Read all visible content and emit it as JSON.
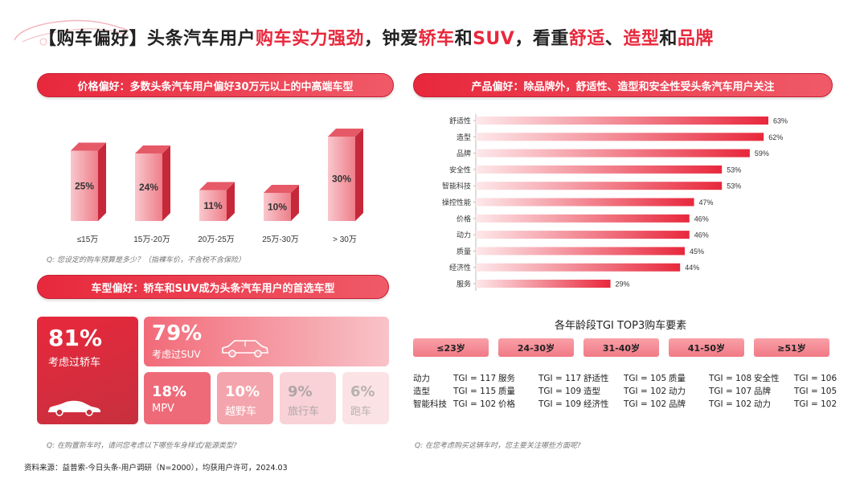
{
  "title": {
    "segments": [
      {
        "text": "【购车偏好】头条汽车用户",
        "hl": false
      },
      {
        "text": "购车实力强劲",
        "hl": true
      },
      {
        "text": "，钟爱",
        "hl": false
      },
      {
        "text": "轿车",
        "hl": true
      },
      {
        "text": "和",
        "hl": false
      },
      {
        "text": "SUV",
        "hl": true
      },
      {
        "text": "，看重",
        "hl": false
      },
      {
        "text": "舒适",
        "hl": true
      },
      {
        "text": "、",
        "hl": false
      },
      {
        "text": "造型",
        "hl": true
      },
      {
        "text": "和",
        "hl": false
      },
      {
        "text": "品牌",
        "hl": true
      }
    ]
  },
  "price_section": {
    "header": "价格偏好：多数头条汽车用户偏好30万元以上的中高端车型",
    "question": "Q: 您设定的购车预算是多少？（指裸车价，不含税不含保险）"
  },
  "body_section": {
    "header": "车型偏好：轿车和SUV成为头条汽车用户的首选车型",
    "question": "Q: 在购置新车时，请问您考虑以下哪些车身样式/能源类型?",
    "tiles": [
      {
        "pct": "81%",
        "label": "考虑过轿车"
      },
      {
        "pct": "79%",
        "label": "考虑过SUV"
      },
      {
        "pct": "18%",
        "label": "MPV"
      },
      {
        "pct": "10%",
        "label": "越野车"
      },
      {
        "pct": "9%",
        "label": "旅行车"
      },
      {
        "pct": "6%",
        "label": "跑车"
      }
    ]
  },
  "product_section": {
    "header": "产品偏好：除品牌外，舒适性、造型和安全性受头条汽车用户关注",
    "question": "Q: 在您考虑购买这辆车时，您主要关注哪些方面呢?"
  },
  "tgi": {
    "title": "各年龄段TGI TOP3购车要素",
    "groups": [
      {
        "age": "≤23岁",
        "items": [
          {
            "k": "动力",
            "v": "TGI = 117"
          },
          {
            "k": "造型",
            "v": "TGI = 115"
          },
          {
            "k": "智能科技",
            "v": "TGI = 102"
          }
        ]
      },
      {
        "age": "24-30岁",
        "items": [
          {
            "k": "服务",
            "v": "TGI = 117"
          },
          {
            "k": "质量",
            "v": "TGI = 109"
          },
          {
            "k": "价格",
            "v": "TGI = 109"
          }
        ]
      },
      {
        "age": "31-40岁",
        "items": [
          {
            "k": "舒适性",
            "v": "TGI = 105"
          },
          {
            "k": "造型",
            "v": "TGI = 102"
          },
          {
            "k": "经济性",
            "v": "TGI = 102"
          }
        ]
      },
      {
        "age": "41-50岁",
        "items": [
          {
            "k": "质量",
            "v": "TGI = 108"
          },
          {
            "k": "动力",
            "v": "TGI = 107"
          },
          {
            "k": "品牌",
            "v": "TGI = 102"
          }
        ]
      },
      {
        "age": "≥51岁",
        "items": [
          {
            "k": "安全性",
            "v": "TGI = 106"
          },
          {
            "k": "品牌",
            "v": "TGI = 105"
          },
          {
            "k": "动力",
            "v": "TGI = 102"
          }
        ]
      }
    ]
  },
  "source": "资料来源：益普索-今日头条-用户调研（N=2000），均获用户许可，2024.03",
  "colors": {
    "accent": "#e8283c",
    "tile_dark": "#d9303f",
    "tile_light": "#f7c9cd"
  },
  "chart_data": [
    {
      "type": "bar",
      "title": "",
      "categories": [
        "≤15万",
        "15万-20万",
        "20万-25万",
        "25万-30万",
        "> 30万"
      ],
      "values": [
        25,
        24,
        11,
        10,
        30
      ],
      "value_labels": [
        "25%",
        "24%",
        "11%",
        "10%",
        "30%"
      ],
      "ylim": [
        0,
        30
      ],
      "xlabel": "",
      "ylabel": "",
      "grid": false
    },
    {
      "type": "bar",
      "orientation": "horizontal",
      "title": "",
      "categories": [
        "舒适性",
        "造型",
        "品牌",
        "安全性",
        "智能科技",
        "操控性能",
        "价格",
        "动力",
        "质量",
        "经济性",
        "服务"
      ],
      "values": [
        63,
        62,
        59,
        53,
        53,
        47,
        46,
        46,
        45,
        44,
        29
      ],
      "value_labels": [
        "63%",
        "62%",
        "59%",
        "53%",
        "53%",
        "47%",
        "46%",
        "46%",
        "45%",
        "44%",
        "29%"
      ],
      "xlim": [
        0,
        63
      ],
      "grid": false
    }
  ]
}
